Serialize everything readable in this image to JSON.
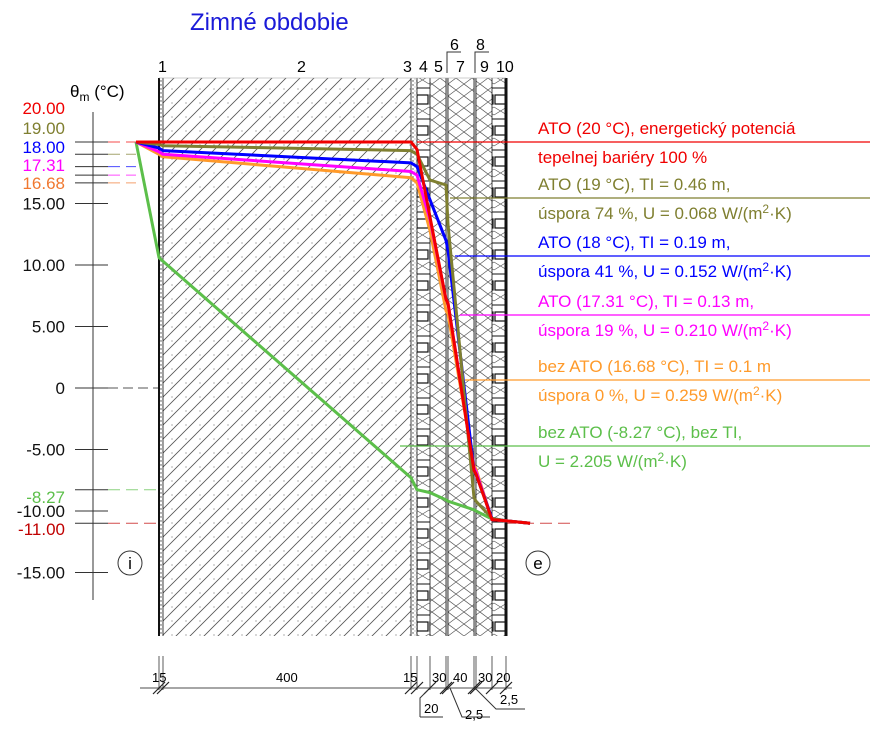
{
  "title": "Zimné obdobie",
  "y_axis_label": {
    "base": "θ",
    "sub": "m",
    "unit": " (°C)"
  },
  "colors": {
    "title": "#1a1ad8",
    "red": "#f00000",
    "olive": "#7f7f30",
    "blue": "#0000ff",
    "magenta": "#ff00ff",
    "orange": "#ff9a2a",
    "green": "#5cbf4a",
    "darkred": "#c00000"
  },
  "chart_data": {
    "type": "line",
    "title": "Zimné obdobie",
    "ylabel": "θm (°C)",
    "ylim": [
      -17,
      21
    ],
    "y_ticks": [
      "15.00",
      "10.00",
      "5.00",
      "0",
      "-5.00",
      "-10.00",
      "-15.00"
    ],
    "y_tick_values": [
      15,
      10,
      5,
      0,
      -5,
      -10,
      -15
    ],
    "highlighted_values": [
      {
        "label": "20.00",
        "value": 20,
        "color": "#f00000"
      },
      {
        "label": "19.00",
        "value": 19,
        "color": "#7f7f30"
      },
      {
        "label": "18.00",
        "value": 18,
        "color": "#0000ff"
      },
      {
        "label": "17.31",
        "value": 17.31,
        "color": "#ff00ff"
      },
      {
        "label": "16.68",
        "value": 16.68,
        "color": "#f07830"
      },
      {
        "label": "-8.27",
        "value": -8.27,
        "color": "#5cbf4a"
      },
      {
        "label": "-11.00",
        "value": -11,
        "color": "#c00000"
      }
    ],
    "x_positions_mm": [
      "i",
      0,
      15,
      415,
      430,
      450,
      480,
      482.5,
      522.5,
      525,
      555,
      575,
      "e"
    ],
    "series": [
      {
        "color": "#5cbf4a",
        "values": [
          20,
          10.6,
          10.3,
          -7.3,
          -8.27,
          -8.5,
          -9.1,
          -9.2,
          -9.9,
          -10.0,
          -10.65,
          -10.8,
          -11
        ]
      },
      {
        "color": "#ff9a2a",
        "values": [
          20,
          19.0,
          18.8,
          17.1,
          16.68,
          12.8,
          6.3,
          6.0,
          -6.3,
          -6.6,
          -10.7,
          -10.8,
          -11
        ]
      },
      {
        "color": "#ff00ff",
        "values": [
          20,
          19.2,
          19.0,
          17.6,
          17.31,
          13.7,
          7.2,
          6.9,
          -6.5,
          -6.8,
          -10.7,
          -10.8,
          -11
        ]
      },
      {
        "color": "#0000ff",
        "values": [
          20,
          19.5,
          19.3,
          18.3,
          18.0,
          15.3,
          12.0,
          11.2,
          -6.7,
          -7.0,
          -10.6,
          -10.8,
          -11
        ]
      },
      {
        "color": "#7f7f30",
        "values": [
          20,
          19.8,
          19.7,
          19.3,
          19.0,
          16.9,
          16.5,
          13.3,
          -8.9,
          -9.2,
          -10.6,
          -10.8,
          -11
        ]
      },
      {
        "color": "#f00000",
        "values": [
          20,
          20,
          20,
          20,
          19.4,
          13.9,
          7.2,
          6.9,
          -6.7,
          -7.0,
          -10.7,
          -10.8,
          -11
        ]
      }
    ]
  },
  "layers": {
    "labels_bottom": [
      "1",
      "2",
      "3",
      "4",
      "5",
      "7",
      "9",
      "10"
    ],
    "labels_top": [
      "6",
      "8"
    ]
  },
  "dimensions": {
    "top_row": [
      "15",
      "400",
      "15",
      "30",
      "40",
      "30",
      "20"
    ],
    "bottom_row": [
      "20",
      "2,5",
      "2,5"
    ]
  },
  "markers": {
    "interior": "i",
    "exterior": "e"
  },
  "legend": [
    {
      "color": "#f00000",
      "line1": "ATO (20 °C), energetický potenciá",
      "line2": "tepelnej bariéry 100 %"
    },
    {
      "color": "#7f7f30",
      "line1": "ATO (19 °C), TI = 0.46 m,",
      "line2a": "úspora 74 %, U = 0.068 W/(m",
      "sup": "2",
      "line2b": "·K)"
    },
    {
      "color": "#0000ff",
      "line1": "ATO (18 °C), TI = 0.19 m,",
      "line2a": "úspora 41 %, U = 0.152 W/(m",
      "sup": "2",
      "line2b": "·K)"
    },
    {
      "color": "#ff00ff",
      "line1": "ATO (17.31 °C), TI = 0.13 m,",
      "line2a": "úspora 19 %, U = 0.210 W/(m",
      "sup": "2",
      "line2b": "·K)"
    },
    {
      "color": "#ff9a2a",
      "line1": "bez ATO (16.68 °C), TI = 0.1 m",
      "line2a": "úspora 0 %, U = 0.259 W/(m",
      "sup": "2",
      "line2b": "·K)"
    },
    {
      "color": "#5cbf4a",
      "line1": "bez ATO (-8.27 °C), bez TI,",
      "line2a": "U = 2.205 W/(m",
      "sup": "2",
      "line2b": "·K)"
    }
  ]
}
